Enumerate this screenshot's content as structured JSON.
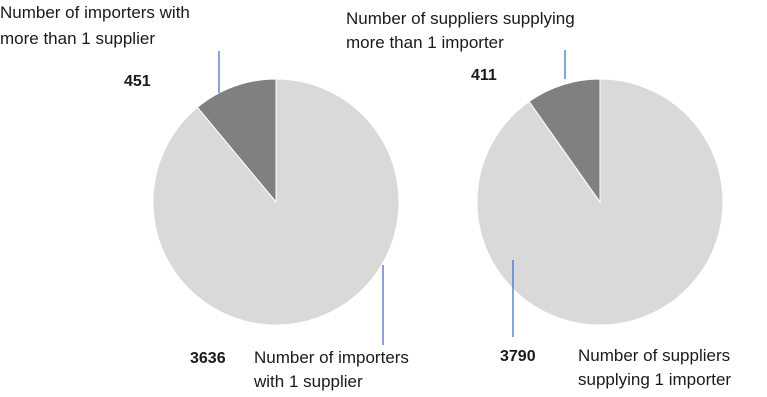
{
  "chart_data": [
    {
      "type": "pie",
      "slices": [
        {
          "label_lines": [
            "Number of importers with",
            "more than 1 supplier"
          ],
          "value": 451,
          "value_text": "451",
          "color": "#808080"
        },
        {
          "label_lines": [
            "Number of importers",
            "with 1 supplier"
          ],
          "value": 3636,
          "value_text": "3636",
          "color": "#d9d9d9"
        }
      ]
    },
    {
      "type": "pie",
      "slices": [
        {
          "label_lines": [
            "Number of suppliers supplying",
            "more than 1 importer"
          ],
          "value": 411,
          "value_text": "411",
          "color": "#808080"
        },
        {
          "label_lines": [
            "Number of suppliers",
            "supplying 1 importer"
          ],
          "value": 3790,
          "value_text": "3790",
          "color": "#d9d9d9"
        }
      ]
    }
  ],
  "leader_color": "#4472c4"
}
